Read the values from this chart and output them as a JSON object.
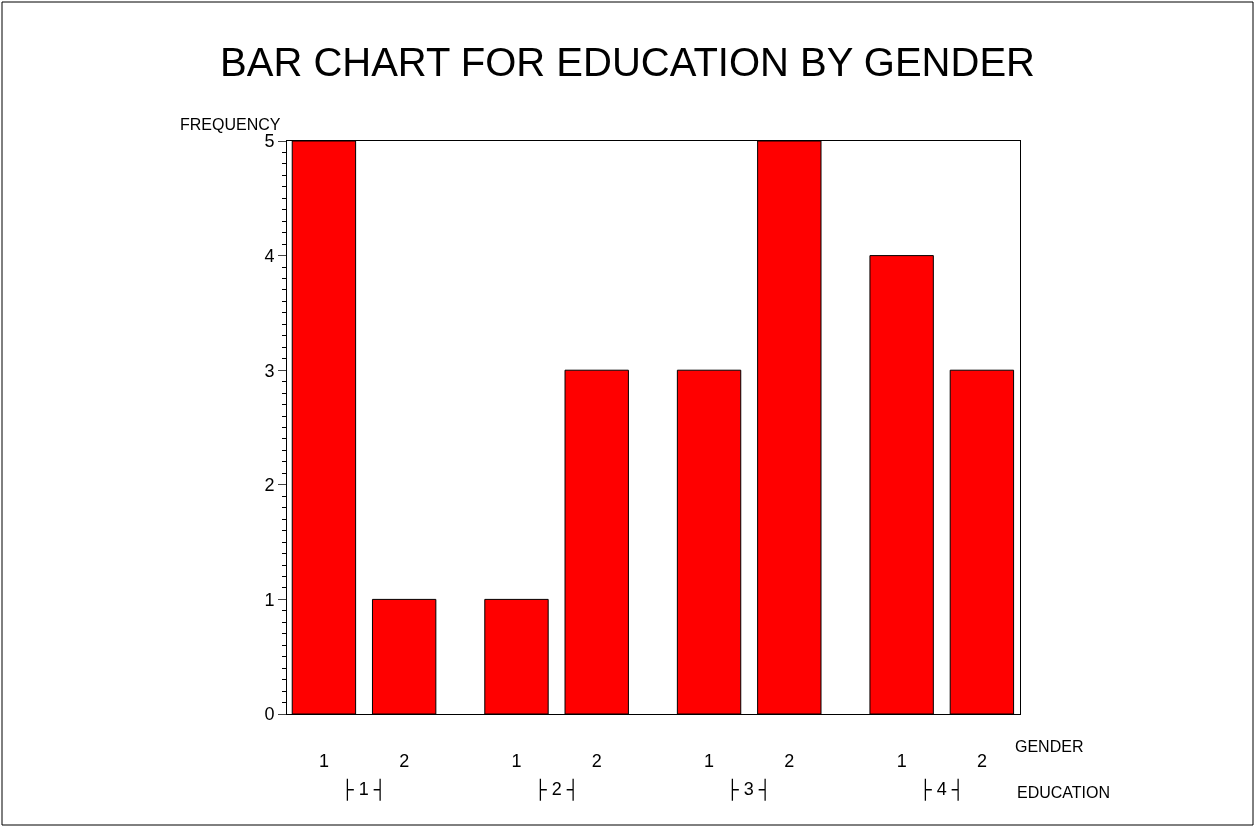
{
  "chart_data": {
    "type": "bar",
    "title": "BAR CHART FOR EDUCATION BY GENDER",
    "ylabel": "FREQUENCY",
    "xlabel": "GENDER",
    "categories": [
      "1",
      "2",
      "1",
      "2",
      "1",
      "2",
      "1",
      "2"
    ],
    "values": [
      5,
      1,
      1,
      3,
      3,
      5,
      4,
      3
    ],
    "color": "#ff0000",
    "ylim": [
      0,
      5
    ],
    "yticks": [
      0,
      1,
      2,
      3,
      4,
      5
    ],
    "legend": false,
    "annotations": [
      "├ 1 ┤",
      "├ 2 ┤",
      "├ 3 ┤",
      "├ 4 ┤",
      "EDUCATION"
    ]
  }
}
